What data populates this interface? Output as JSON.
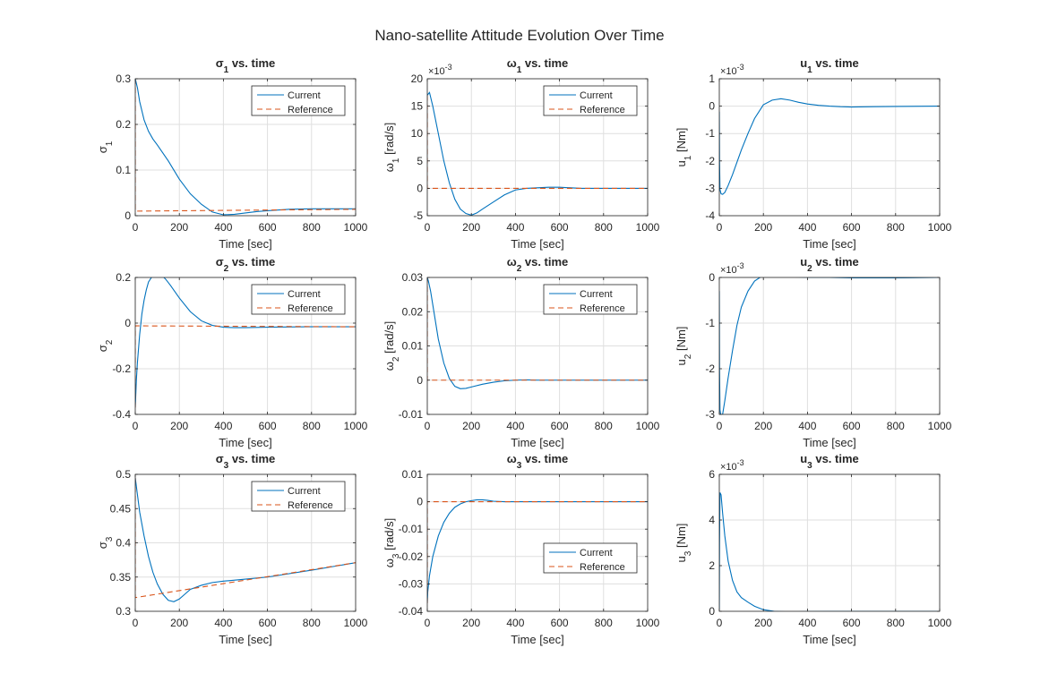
{
  "figure": {
    "title": "Nano-satellite Attitude Evolution Over Time",
    "background": "#ffffff",
    "colors": {
      "current": "#0072BD",
      "reference": "#D95319",
      "grid": "#DFDFDF",
      "axis": "#262626"
    }
  },
  "chart_data": [
    {
      "type": "line",
      "id": "sigma1",
      "title": {
        "sym": "σ",
        "sub": "1",
        "rest": " vs. time"
      },
      "xlabel": "Time [sec]",
      "ylabel": {
        "sym": "σ",
        "sub": "1",
        "rest": ""
      },
      "xlim": [
        0,
        1000
      ],
      "ylim": [
        0,
        0.3
      ],
      "xticks": [
        0,
        200,
        400,
        600,
        800,
        1000
      ],
      "xtick_labels": [
        "0",
        "200",
        "400",
        "600",
        "800",
        "1000"
      ],
      "yticks": [
        0,
        0.1,
        0.2,
        0.3
      ],
      "ytick_labels": [
        "0",
        "0.1",
        "0.2",
        "0.3"
      ],
      "exponent": "",
      "grid": true,
      "legend": {
        "entries": [
          "Current",
          "Reference"
        ],
        "position": "top-right"
      },
      "series": [
        {
          "name": "Current",
          "style": "solid",
          "x": [
            0,
            10,
            20,
            40,
            60,
            80,
            100,
            150,
            200,
            250,
            300,
            350,
            400,
            450,
            500,
            550,
            600,
            700,
            800,
            1000
          ],
          "y": [
            0.3,
            0.28,
            0.25,
            0.21,
            0.185,
            0.168,
            0.155,
            0.12,
            0.08,
            0.048,
            0.025,
            0.008,
            0.002,
            0.003,
            0.006,
            0.009,
            0.011,
            0.014,
            0.015,
            0.015
          ]
        },
        {
          "name": "Reference",
          "style": "dashed",
          "x": [
            0,
            0,
            1000
          ],
          "y": [
            0.3,
            0.01,
            0.014
          ]
        }
      ]
    },
    {
      "type": "line",
      "id": "omega1",
      "title": {
        "sym": "ω",
        "sub": "1",
        "rest": " vs. time"
      },
      "xlabel": "Time [sec]",
      "ylabel": {
        "sym": "ω",
        "sub": "1",
        "rest": " [rad/s]"
      },
      "xlim": [
        0,
        1000
      ],
      "ylim": [
        -5,
        20
      ],
      "xticks": [
        0,
        200,
        400,
        600,
        800,
        1000
      ],
      "xtick_labels": [
        "0",
        "200",
        "400",
        "600",
        "800",
        "1000"
      ],
      "yticks": [
        -5,
        0,
        5,
        10,
        15,
        20
      ],
      "ytick_labels": [
        "-5",
        "0",
        "5",
        "10",
        "15",
        "20"
      ],
      "exponent": "-3",
      "grid": true,
      "legend": {
        "entries": [
          "Current",
          "Reference"
        ],
        "position": "top-right"
      },
      "series": [
        {
          "name": "Current",
          "style": "solid",
          "x": [
            0,
            10,
            25,
            50,
            75,
            100,
            125,
            150,
            175,
            200,
            225,
            250,
            300,
            350,
            400,
            450,
            500,
            550,
            600,
            650,
            700,
            800,
            1000
          ],
          "y": [
            17,
            17.5,
            15,
            10,
            5,
            1,
            -2,
            -3.8,
            -4.6,
            -4.9,
            -4.5,
            -3.8,
            -2.5,
            -1.2,
            -0.3,
            0,
            0.1,
            0.2,
            0.2,
            0.1,
            0,
            0,
            0
          ]
        },
        {
          "name": "Reference",
          "style": "dashed",
          "x": [
            0,
            0,
            1000
          ],
          "y": [
            17,
            0,
            0
          ]
        }
      ]
    },
    {
      "type": "line",
      "id": "u1",
      "title": {
        "sym": "u",
        "sub": "1",
        "rest": " vs. time"
      },
      "xlabel": "Time [sec]",
      "ylabel": {
        "sym": "u",
        "sub": "1",
        "rest": " [Nm]"
      },
      "xlim": [
        0,
        1000
      ],
      "ylim": [
        -4,
        1
      ],
      "xticks": [
        0,
        200,
        400,
        600,
        800,
        1000
      ],
      "xtick_labels": [
        "0",
        "200",
        "400",
        "600",
        "800",
        "1000"
      ],
      "yticks": [
        -4,
        -3,
        -2,
        -1,
        0,
        1
      ],
      "ytick_labels": [
        "-4",
        "-3",
        "-2",
        "-1",
        "0",
        "1"
      ],
      "exponent": "-3",
      "grid": true,
      "legend": null,
      "series": [
        {
          "name": "",
          "style": "solid",
          "x": [
            0,
            1,
            3,
            8,
            15,
            25,
            40,
            60,
            80,
            100,
            130,
            160,
            200,
            240,
            280,
            320,
            360,
            400,
            450,
            500,
            550,
            600,
            700,
            800,
            1000
          ],
          "y": [
            -0.2,
            -2,
            -3.05,
            -3.2,
            -3.22,
            -3.15,
            -2.9,
            -2.5,
            -2.05,
            -1.6,
            -1.0,
            -0.45,
            0.05,
            0.22,
            0.27,
            0.22,
            0.14,
            0.08,
            0.03,
            0,
            -0.02,
            -0.03,
            -0.02,
            -0.01,
            0
          ]
        }
      ]
    },
    {
      "type": "line",
      "id": "sigma2",
      "title": {
        "sym": "σ",
        "sub": "2",
        "rest": " vs. time"
      },
      "xlabel": "Time [sec]",
      "ylabel": {
        "sym": "σ",
        "sub": "2",
        "rest": ""
      },
      "xlim": [
        0,
        1000
      ],
      "ylim": [
        -0.4,
        0.2
      ],
      "xticks": [
        0,
        200,
        400,
        600,
        800,
        1000
      ],
      "xtick_labels": [
        "0",
        "200",
        "400",
        "600",
        "800",
        "1000"
      ],
      "yticks": [
        -0.4,
        -0.2,
        0,
        0.2
      ],
      "ytick_labels": [
        "-0.4",
        "-0.2",
        "0",
        "0.2"
      ],
      "exponent": "",
      "grid": true,
      "legend": {
        "entries": [
          "Current",
          "Reference"
        ],
        "position": "top-right"
      },
      "series": [
        {
          "name": "Current",
          "style": "solid",
          "x": [
            0,
            5,
            10,
            20,
            30,
            40,
            50,
            60,
            80,
            100,
            120,
            140,
            160,
            200,
            250,
            300,
            350,
            400,
            450,
            500,
            550,
            600,
            700,
            800,
            1000
          ],
          "y": [
            -0.37,
            -0.25,
            -0.17,
            -0.05,
            0.04,
            0.1,
            0.145,
            0.18,
            0.21,
            0.22,
            0.21,
            0.19,
            0.165,
            0.11,
            0.05,
            0.01,
            -0.01,
            -0.018,
            -0.02,
            -0.02,
            -0.019,
            -0.018,
            -0.017,
            -0.016,
            -0.016
          ]
        },
        {
          "name": "Reference",
          "style": "dashed",
          "x": [
            0,
            0,
            1000
          ],
          "y": [
            -0.37,
            -0.012,
            -0.016
          ]
        }
      ]
    },
    {
      "type": "line",
      "id": "omega2",
      "title": {
        "sym": "ω",
        "sub": "2",
        "rest": " vs. time"
      },
      "xlabel": "Time [sec]",
      "ylabel": {
        "sym": "ω",
        "sub": "2",
        "rest": " [rad/s]"
      },
      "xlim": [
        0,
        1000
      ],
      "ylim": [
        -0.01,
        0.03
      ],
      "xticks": [
        0,
        200,
        400,
        600,
        800,
        1000
      ],
      "xtick_labels": [
        "0",
        "200",
        "400",
        "600",
        "800",
        "1000"
      ],
      "yticks": [
        -0.01,
        0,
        0.01,
        0.02,
        0.03
      ],
      "ytick_labels": [
        "-0.01",
        "0",
        "0.01",
        "0.02",
        "0.03"
      ],
      "exponent": "",
      "grid": true,
      "legend": {
        "entries": [
          "Current",
          "Reference"
        ],
        "position": "top-right"
      },
      "series": [
        {
          "name": "Current",
          "style": "solid",
          "x": [
            0,
            5,
            15,
            30,
            50,
            75,
            100,
            125,
            150,
            175,
            200,
            250,
            300,
            350,
            400,
            450,
            500,
            600,
            700,
            800,
            1000
          ],
          "y": [
            0.03,
            0.029,
            0.026,
            0.02,
            0.012,
            0.005,
            0.0005,
            -0.0018,
            -0.0025,
            -0.0024,
            -0.002,
            -0.0012,
            -0.0006,
            -0.0002,
            0,
            0.0001,
            0,
            0,
            0,
            0,
            0
          ]
        },
        {
          "name": "Reference",
          "style": "dashed",
          "x": [
            0,
            0,
            1000
          ],
          "y": [
            0.03,
            0,
            0
          ]
        }
      ]
    },
    {
      "type": "line",
      "id": "u2",
      "title": {
        "sym": "u",
        "sub": "2",
        "rest": " vs. time"
      },
      "xlabel": "Time [sec]",
      "ylabel": {
        "sym": "u",
        "sub": "2",
        "rest": " [Nm]"
      },
      "xlim": [
        0,
        1000
      ],
      "ylim": [
        -3,
        0
      ],
      "xticks": [
        0,
        200,
        400,
        600,
        800,
        1000
      ],
      "xtick_labels": [
        "0",
        "200",
        "400",
        "600",
        "800",
        "1000"
      ],
      "yticks": [
        -3,
        -2,
        -1,
        0
      ],
      "ytick_labels": [
        "-3",
        "-2",
        "-1",
        "0"
      ],
      "exponent": "-3",
      "grid": true,
      "legend": null,
      "series": [
        {
          "name": "",
          "style": "solid",
          "x": [
            0,
            1,
            3,
            8,
            15,
            25,
            40,
            60,
            80,
            100,
            130,
            160,
            200,
            250,
            300,
            400,
            500,
            600,
            800,
            1000
          ],
          "y": [
            -0.3,
            -2,
            -2.9,
            -3.05,
            -3.0,
            -2.7,
            -2.2,
            -1.6,
            -1.05,
            -0.65,
            -0.3,
            -0.08,
            0.05,
            0.05,
            0.02,
            0,
            0,
            -0.01,
            -0.01,
            0
          ]
        }
      ]
    },
    {
      "type": "line",
      "id": "sigma3",
      "title": {
        "sym": "σ",
        "sub": "3",
        "rest": " vs. time"
      },
      "xlabel": "Time [sec]",
      "ylabel": {
        "sym": "σ",
        "sub": "3",
        "rest": ""
      },
      "xlim": [
        0,
        1000
      ],
      "ylim": [
        0.3,
        0.5
      ],
      "xticks": [
        0,
        200,
        400,
        600,
        800,
        1000
      ],
      "xtick_labels": [
        "0",
        "200",
        "400",
        "600",
        "800",
        "1000"
      ],
      "yticks": [
        0.3,
        0.35,
        0.4,
        0.45,
        0.5
      ],
      "ytick_labels": [
        "0.3",
        "0.35",
        "0.4",
        "0.45",
        "0.5"
      ],
      "exponent": "",
      "grid": true,
      "legend": {
        "entries": [
          "Current",
          "Reference"
        ],
        "position": "top-right"
      },
      "series": [
        {
          "name": "Current",
          "style": "solid",
          "x": [
            0,
            10,
            20,
            40,
            60,
            80,
            100,
            125,
            150,
            175,
            200,
            225,
            250,
            300,
            350,
            400,
            500,
            600,
            800,
            1000
          ],
          "y": [
            0.495,
            0.47,
            0.445,
            0.41,
            0.38,
            0.357,
            0.34,
            0.325,
            0.316,
            0.314,
            0.318,
            0.325,
            0.332,
            0.338,
            0.342,
            0.344,
            0.347,
            0.35,
            0.36,
            0.371
          ]
        },
        {
          "name": "Reference",
          "style": "dashed",
          "x": [
            0,
            0,
            1000
          ],
          "y": [
            0.495,
            0.32,
            0.371
          ]
        }
      ]
    },
    {
      "type": "line",
      "id": "omega3",
      "title": {
        "sym": "ω",
        "sub": "3",
        "rest": " vs. time"
      },
      "xlabel": "Time [sec]",
      "ylabel": {
        "sym": "ω",
        "sub": "3",
        "rest": " [rad/s]"
      },
      "xlim": [
        0,
        1000
      ],
      "ylim": [
        -0.04,
        0.01
      ],
      "xticks": [
        0,
        200,
        400,
        600,
        800,
        1000
      ],
      "xtick_labels": [
        "0",
        "200",
        "400",
        "600",
        "800",
        "1000"
      ],
      "yticks": [
        -0.04,
        -0.03,
        -0.02,
        -0.01,
        0,
        0.01
      ],
      "ytick_labels": [
        "-0.04",
        "-0.03",
        "-0.02",
        "-0.01",
        "0",
        "0.01"
      ],
      "exponent": "",
      "grid": true,
      "legend": {
        "entries": [
          "Current",
          "Reference"
        ],
        "position": "center-right"
      },
      "series": [
        {
          "name": "Current",
          "style": "solid",
          "x": [
            0,
            2,
            10,
            25,
            50,
            75,
            100,
            125,
            150,
            175,
            200,
            225,
            250,
            275,
            300,
            350,
            400,
            500,
            600,
            800,
            1000
          ],
          "y": [
            -0.037,
            -0.033,
            -0.027,
            -0.02,
            -0.0125,
            -0.0075,
            -0.0042,
            -0.002,
            -0.0008,
            0,
            0.0004,
            0.0007,
            0.0007,
            0.0005,
            0.0002,
            0,
            0,
            0,
            0,
            0,
            0
          ]
        },
        {
          "name": "Reference",
          "style": "dashed",
          "x": [
            0,
            0,
            1000
          ],
          "y": [
            -0.037,
            0,
            0
          ]
        }
      ]
    },
    {
      "type": "line",
      "id": "u3",
      "title": {
        "sym": "u",
        "sub": "3",
        "rest": " vs. time"
      },
      "xlabel": "Time [sec]",
      "ylabel": {
        "sym": "u",
        "sub": "3",
        "rest": " [Nm]"
      },
      "xlim": [
        0,
        1000
      ],
      "ylim": [
        0,
        6
      ],
      "xticks": [
        0,
        200,
        400,
        600,
        800,
        1000
      ],
      "xtick_labels": [
        "0",
        "200",
        "400",
        "600",
        "800",
        "1000"
      ],
      "yticks": [
        0,
        2,
        4,
        6
      ],
      "ytick_labels": [
        "0",
        "2",
        "4",
        "6"
      ],
      "exponent": "-3",
      "grid": true,
      "legend": null,
      "series": [
        {
          "name": "",
          "style": "solid",
          "x": [
            0,
            1,
            3,
            8,
            15,
            25,
            40,
            60,
            80,
            100,
            130,
            160,
            200,
            250,
            300,
            350,
            400,
            500,
            600,
            800,
            1000
          ],
          "y": [
            0.1,
            3,
            5.2,
            5.1,
            4.3,
            3.3,
            2.2,
            1.35,
            0.85,
            0.6,
            0.4,
            0.22,
            0.07,
            0,
            -0.02,
            -0.02,
            -0.01,
            0,
            0,
            0,
            0
          ]
        }
      ]
    }
  ]
}
